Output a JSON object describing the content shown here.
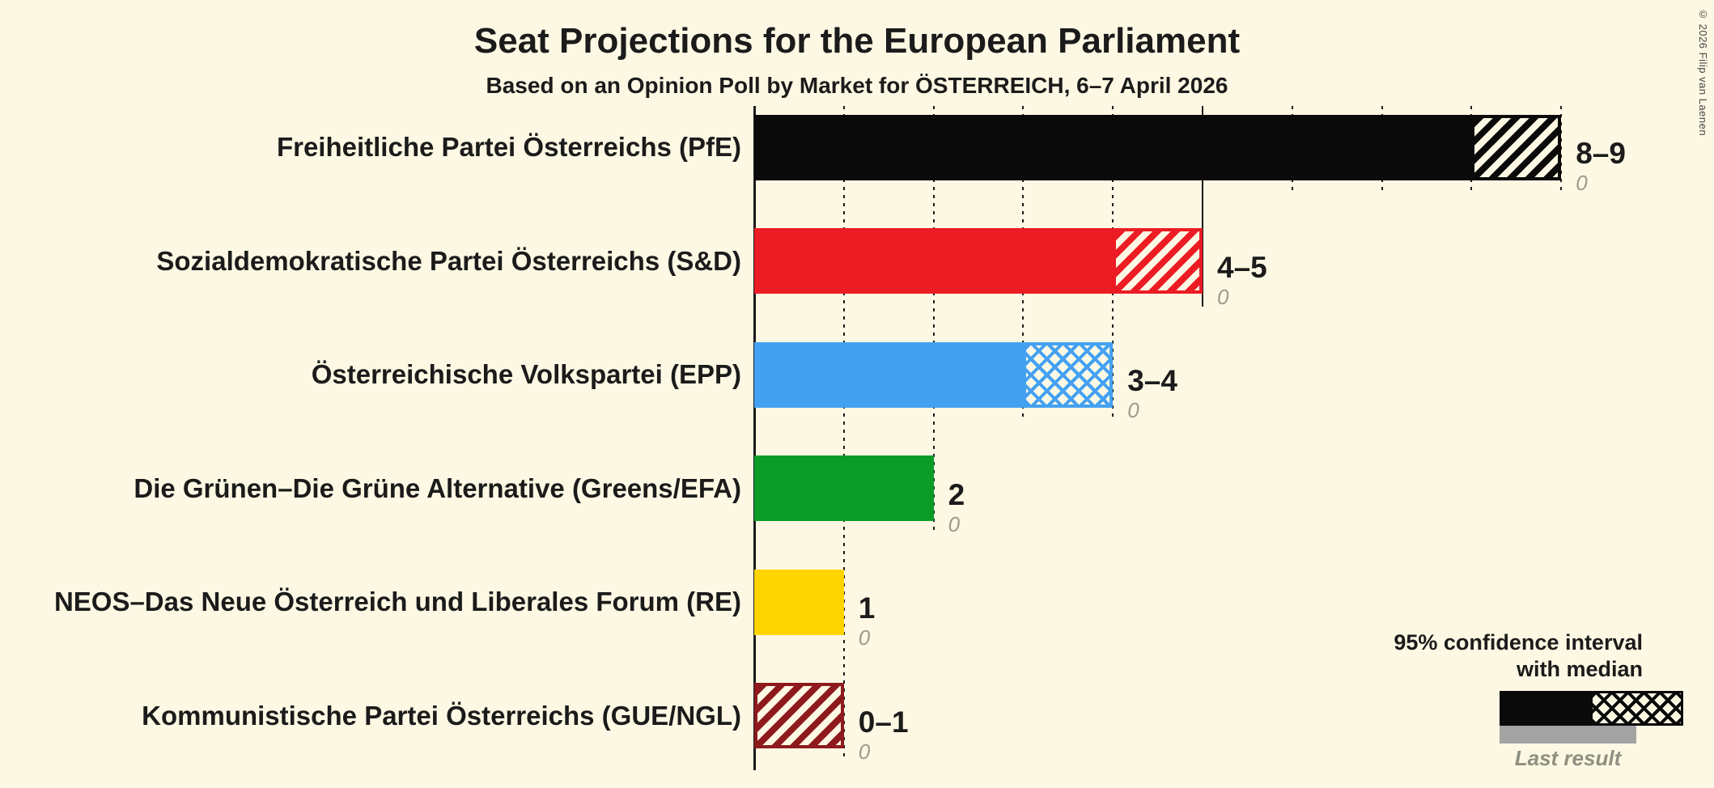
{
  "title": "Seat Projections for the European Parliament",
  "subtitle": "Based on an Opinion Poll by Market for ÖSTERREICH, 6–7 April 2026",
  "copyright": "© 2026 Filip van Laenen",
  "colors": {
    "background": "#FDF8E3",
    "text": "#1B1B1B",
    "gridline": "#1B1B1B",
    "last_result_text": "#9C9C8E",
    "legend_gray_bar": "#A3A3A3",
    "legend_black": "#0A0A0A"
  },
  "legend": {
    "ci_line1": "95% confidence interval",
    "ci_line2": "with median",
    "last_result": "Last result"
  },
  "chart_data": {
    "type": "bar",
    "orientation": "horizontal",
    "unit": "seats",
    "x_axis": {
      "min": 0,
      "max": 9,
      "gridline_step": 1,
      "solid_line_at": 5
    },
    "series": [
      {
        "party": "Freiheitliche Partei Österreichs (PfE)",
        "color": "#0A0A0A",
        "solid_to": 8,
        "ci_low": 8,
        "ci_high": 9,
        "label": "8–9",
        "last_result": "0",
        "hatch": "diagonal"
      },
      {
        "party": "Sozialdemokratische Partei Österreichs (S&D)",
        "color": "#EC1C24",
        "solid_to": 4,
        "ci_low": 4,
        "ci_high": 5,
        "label": "4–5",
        "last_result": "0",
        "hatch": "diagonal"
      },
      {
        "party": "Österreichische Volkspartei (EPP)",
        "color": "#44A1F2",
        "solid_to": 3,
        "ci_low": 3,
        "ci_high": 4,
        "label": "3–4",
        "last_result": "0",
        "hatch": "cross"
      },
      {
        "party": "Die Grünen–Die Grüne Alternative (Greens/EFA)",
        "color": "#0A9C26",
        "solid_to": 2,
        "ci_low": 2,
        "ci_high": 2,
        "label": "2",
        "last_result": "0",
        "hatch": "none"
      },
      {
        "party": "NEOS–Das Neue Österreich und Liberales Forum (RE)",
        "color": "#FFD500",
        "solid_to": 1,
        "ci_low": 1,
        "ci_high": 1,
        "label": "1",
        "last_result": "0",
        "hatch": "none"
      },
      {
        "party": "Kommunistische Partei Österreichs (GUE/NGL)",
        "color": "#8E1A1D",
        "solid_to": 0,
        "ci_low": 0,
        "ci_high": 1,
        "label": "0–1",
        "last_result": "0",
        "hatch": "diagonal"
      }
    ]
  }
}
